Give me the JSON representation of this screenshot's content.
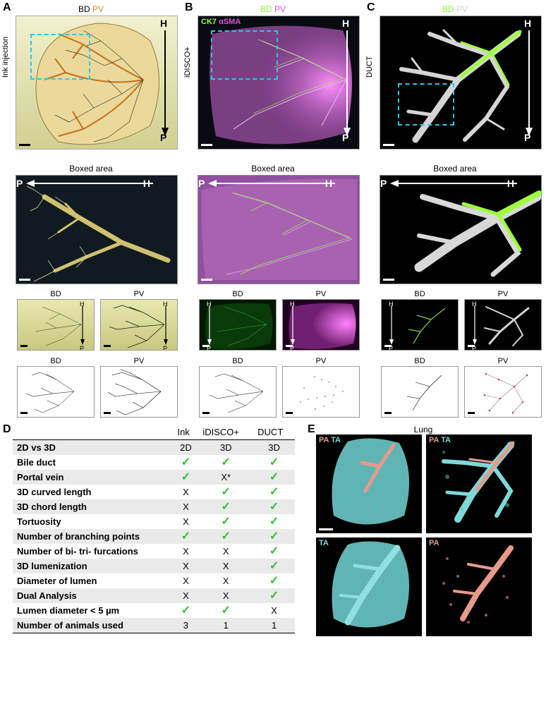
{
  "colors": {
    "bd_orange": "#e08a2e",
    "bd_green": "#8fff3f",
    "pv_gray": "#cfcfcf",
    "pv_magenta": "#e050e0",
    "pa_salmon": "#e89a8a",
    "ta_cyan": "#7fd8d8",
    "check": "#2fbf2f",
    "cyan_dash": "#2fc5e6",
    "ink_bg_top": "#f2f0d0",
    "ink_bg_bot": "#d0d090",
    "dark_bg": "#0a0a12",
    "black": "#000000",
    "white": "#ffffff"
  },
  "panelA": {
    "letter": "A",
    "top_bd": "BD",
    "top_pv": "PV",
    "side_label": "Ink injection",
    "boxed": "Boxed area",
    "thumb_bd": "BD",
    "thumb_pv": "PV",
    "H": "H",
    "P": "P"
  },
  "panelB": {
    "letter": "B",
    "top_bd": "BD",
    "top_pv": "PV",
    "sub_l": "CK7",
    "sub_r": "αSMA",
    "side_label": "iDISCO+",
    "boxed": "Boxed area",
    "thumb_bd": "BD",
    "thumb_pv": "PV",
    "H": "H",
    "P": "P"
  },
  "panelC": {
    "letter": "C",
    "top_bd": "BD",
    "top_pv": "PV",
    "side_label": "DUCT",
    "boxed": "Boxed area",
    "thumb_bd": "BD",
    "thumb_pv": "PV",
    "H": "H",
    "P": "P"
  },
  "panelD": {
    "letter": "D",
    "columns": [
      "",
      "Ink",
      "iDISCO+",
      "DUCT"
    ],
    "rows": [
      [
        "2D vs 3D",
        "2D",
        "3D",
        "3D"
      ],
      [
        "Bile duct",
        "check",
        "check",
        "check"
      ],
      [
        "Portal vein",
        "check",
        "X*",
        "check"
      ],
      [
        "3D curved length",
        "X",
        "check",
        "check"
      ],
      [
        "3D chord length",
        "X",
        "check",
        "check"
      ],
      [
        "Tortuosity",
        "X",
        "check",
        "check"
      ],
      [
        "Number of branching points",
        "check",
        "check",
        "check"
      ],
      [
        "Number of bi- tri- furcations",
        "X",
        "X",
        "check"
      ],
      [
        "3D lumenization",
        "X",
        "X",
        "check"
      ],
      [
        "Diameter of lumen",
        "X",
        "X",
        "check"
      ],
      [
        "Dual Analysis",
        "X",
        "X",
        "check"
      ],
      [
        "Lumen diameter < 5 µm",
        "check",
        "check",
        "X"
      ],
      [
        "Number of animals used",
        "3",
        "1",
        "1"
      ]
    ]
  },
  "panelE": {
    "letter": "E",
    "title": "Lung",
    "pa": "PA",
    "ta": "TA"
  }
}
